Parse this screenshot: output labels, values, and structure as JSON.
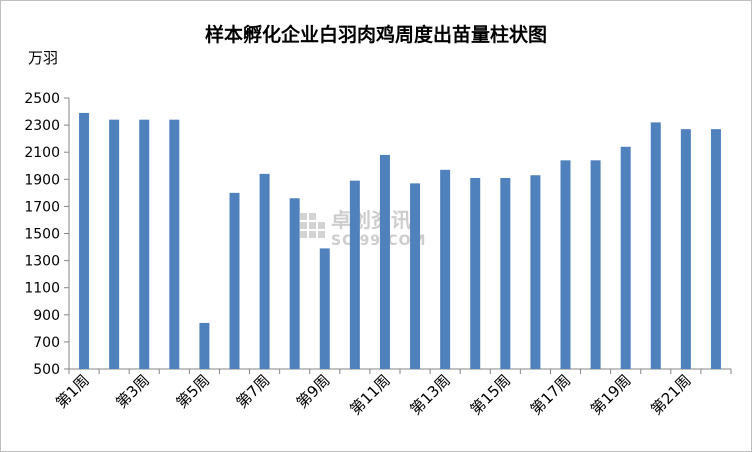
{
  "chart_data": {
    "type": "bar",
    "title": "样本孵化企业白羽肉鸡周度出苗量柱状图",
    "ylabel": "万羽",
    "xlabel": "",
    "ylim": [
      500,
      2500
    ],
    "yticks": [
      500,
      700,
      900,
      1100,
      1300,
      1500,
      1700,
      1900,
      2100,
      2300,
      2500
    ],
    "categories": [
      "第1周",
      "第2周",
      "第3周",
      "第4周",
      "第5周",
      "第6周",
      "第7周",
      "第8周",
      "第9周",
      "第10周",
      "第11周",
      "第12周",
      "第13周",
      "第14周",
      "第15周",
      "第16周",
      "第17周",
      "第18周",
      "第19周",
      "第20周",
      "第21周",
      "第22周"
    ],
    "shown_category_labels": [
      "第1周",
      "第3周",
      "第5周",
      "第7周",
      "第9周",
      "第11周",
      "第13周",
      "第15周",
      "第17周",
      "第19周",
      "第21周"
    ],
    "values": [
      2390,
      2340,
      2340,
      2340,
      840,
      1800,
      1940,
      1760,
      1390,
      1890,
      2080,
      1870,
      1970,
      1910,
      1910,
      1930,
      2040,
      2040,
      2140,
      2320,
      2270,
      2270
    ],
    "bar_color": "#4f81bd",
    "grid": false,
    "legend": "none"
  },
  "watermark": {
    "text_cn": "卓创资讯",
    "text_en": "SCI99.COM"
  }
}
